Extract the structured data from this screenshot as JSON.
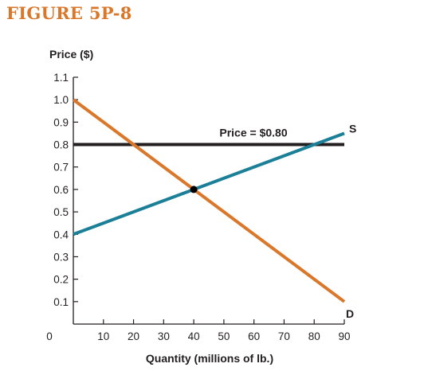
{
  "figure_label": "FIGURE 5P-8",
  "colors": {
    "title": "#d9772b",
    "demand": "#d9772b",
    "supply": "#1b7f97",
    "price_line": "#231f20",
    "axis": "#231f20"
  },
  "chart_data": {
    "type": "line",
    "ylabel": "Price ($)",
    "xlabel": "Quantity (millions of lb.)",
    "xlim": [
      0,
      90
    ],
    "ylim": [
      0,
      1.1
    ],
    "origin_label": "0",
    "x_ticks": [
      10,
      20,
      30,
      40,
      50,
      60,
      70,
      80,
      90
    ],
    "x_tick_labels": [
      "10",
      "20",
      "30",
      "40",
      "50",
      "60",
      "70",
      "80",
      "90"
    ],
    "y_ticks": [
      0.1,
      0.2,
      0.3,
      0.4,
      0.5,
      0.6,
      0.7,
      0.8,
      0.9,
      1.0,
      1.1
    ],
    "y_tick_labels": [
      "0.1",
      "0.2",
      "0.3",
      "0.4",
      "0.5",
      "0.6",
      "0.7",
      "0.8",
      "0.9",
      "1.0",
      "1.1"
    ],
    "grid": false,
    "series": [
      {
        "name": "D",
        "color": "#d9772b",
        "x": [
          0,
          90
        ],
        "y": [
          1.0,
          0.1
        ]
      },
      {
        "name": "S",
        "color": "#1b7f97",
        "x": [
          0,
          90
        ],
        "y": [
          0.4,
          0.85
        ]
      }
    ],
    "price_line": {
      "label": "Price = $0.80",
      "y": 0.8,
      "x": [
        0,
        90
      ]
    },
    "equilibrium": {
      "x": 40,
      "y": 0.6
    }
  }
}
